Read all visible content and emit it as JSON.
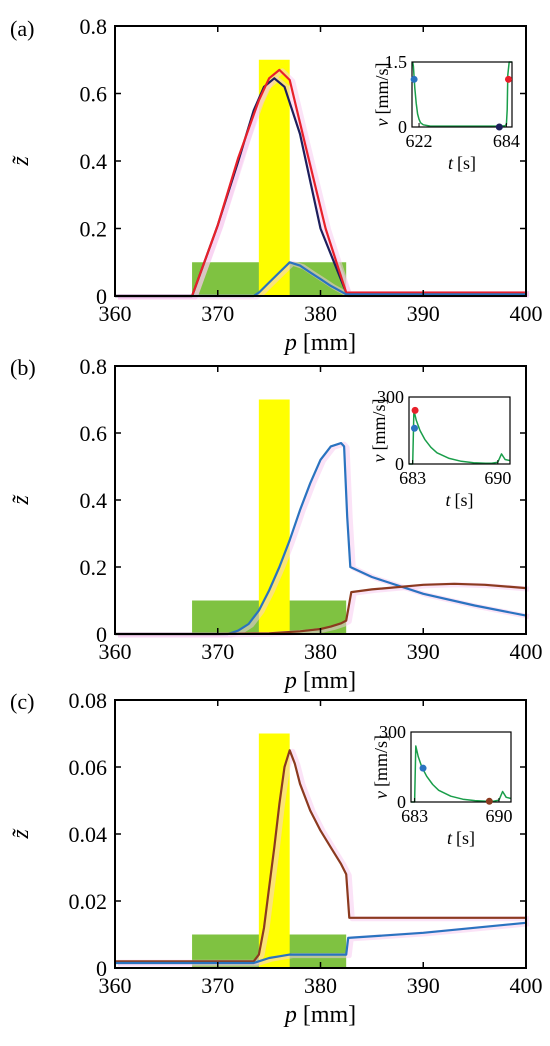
{
  "colors": {
    "yellow": "#ffff00",
    "green": "#7fc241",
    "red": "#e8202a",
    "navy": "#1d1f5c",
    "blue": "#2a73c0",
    "brown": "#8b3a1f",
    "inset_line": "#1a9e4a",
    "pink_shadow": "#f8c8f0"
  },
  "chart_data": [
    {
      "type": "line",
      "panel_label": "(a)",
      "xlabel_var": "p",
      "xlabel_unit": "[mm]",
      "ylabel": "z̃",
      "xlim": [
        360,
        400
      ],
      "ylim": [
        0,
        0.8
      ],
      "x_ticks": [
        360,
        370,
        380,
        390,
        400
      ],
      "y_ticks": [
        0,
        0.2,
        0.4,
        0.6,
        0.8
      ],
      "y_tick_labels": [
        "0",
        "0.2",
        "0.4",
        "0.6",
        "0.8"
      ],
      "shaded_regions": [
        {
          "color": "green",
          "x_from": 367.5,
          "x_to": 382.5,
          "y_from": 0,
          "y_to": 0.1
        },
        {
          "color": "yellow",
          "x_from": 374,
          "x_to": 377,
          "y_from": 0,
          "y_to": 0.7
        }
      ],
      "series": [
        {
          "color": "navy",
          "x": [
            360,
            367.5,
            370,
            372,
            373.5,
            374.5,
            375.5,
            376.5,
            378,
            380,
            382.5,
            400
          ],
          "y": [
            0,
            0,
            0.21,
            0.4,
            0.55,
            0.62,
            0.645,
            0.62,
            0.48,
            0.2,
            0.01,
            0.01
          ]
        },
        {
          "color": "red",
          "x": [
            360,
            367.5,
            370,
            372,
            374,
            375,
            376,
            377,
            378.5,
            380.5,
            382.5,
            400
          ],
          "y": [
            0,
            0,
            0.21,
            0.41,
            0.58,
            0.645,
            0.67,
            0.64,
            0.45,
            0.2,
            0.01,
            0.01
          ]
        },
        {
          "color": "blue",
          "x": [
            360,
            373.5,
            374,
            375,
            376,
            377,
            378,
            379,
            380,
            381,
            382.5,
            400
          ],
          "y": [
            0,
            0,
            0.01,
            0.04,
            0.07,
            0.1,
            0.09,
            0.07,
            0.05,
            0.03,
            0.005,
            0.005
          ]
        }
      ],
      "inset": {
        "ylabel_var": "v",
        "ylabel_unit": "[mm/s]",
        "xlabel_var": "t",
        "xlabel_unit": "[s]",
        "xlim": [
          617,
          688
        ],
        "ylim": [
          0,
          1.5
        ],
        "x_tick_labels": [
          622,
          684
        ],
        "y_tick_labels": [
          "0",
          "1.5"
        ],
        "line": {
          "x": [
            617.5,
            618,
            619,
            620,
            621,
            622,
            623,
            625,
            630,
            680,
            683,
            684,
            684.6,
            685,
            686,
            688
          ],
          "y": [
            1.5,
            1.4,
            0.9,
            0.55,
            0.3,
            0.18,
            0.1,
            0.05,
            0.02,
            0.02,
            0.03,
            0.06,
            0.4,
            1.2,
            1.5,
            1.5
          ]
        },
        "markers": [
          {
            "color": "blue",
            "x": 618.5,
            "y": 1.1
          },
          {
            "color": "navy",
            "x": 679,
            "y": 0
          },
          {
            "color": "red",
            "x": 685.5,
            "y": 1.1
          }
        ]
      }
    },
    {
      "type": "line",
      "panel_label": "(b)",
      "xlabel_var": "p",
      "xlabel_unit": "[mm]",
      "ylabel": "z̃",
      "xlim": [
        360,
        400
      ],
      "ylim": [
        0,
        0.8
      ],
      "x_ticks": [
        360,
        370,
        380,
        390,
        400
      ],
      "y_ticks": [
        0,
        0.2,
        0.4,
        0.6,
        0.8
      ],
      "y_tick_labels": [
        "0",
        "0.2",
        "0.4",
        "0.6",
        "0.8"
      ],
      "shaded_regions": [
        {
          "color": "green",
          "x_from": 367.5,
          "x_to": 382.5,
          "y_from": 0,
          "y_to": 0.1
        },
        {
          "color": "yellow",
          "x_from": 374,
          "x_to": 377,
          "y_from": 0,
          "y_to": 0.7
        }
      ],
      "series": [
        {
          "color": "blue",
          "x": [
            360,
            371,
            372,
            373,
            374,
            375,
            376,
            377,
            378,
            379,
            380,
            381,
            382,
            382.3,
            382.6,
            382.9,
            385,
            390,
            395,
            400
          ],
          "y": [
            0,
            0,
            0.01,
            0.03,
            0.07,
            0.13,
            0.2,
            0.28,
            0.37,
            0.45,
            0.52,
            0.56,
            0.57,
            0.56,
            0.35,
            0.2,
            0.17,
            0.12,
            0.085,
            0.055
          ]
        },
        {
          "color": "brown",
          "x": [
            360,
            370,
            375,
            378,
            380,
            381,
            382,
            382.5,
            383,
            385,
            390,
            393,
            396,
            400
          ],
          "y": [
            0,
            0,
            0.002,
            0.008,
            0.015,
            0.022,
            0.032,
            0.04,
            0.125,
            0.133,
            0.147,
            0.15,
            0.147,
            0.137
          ]
        }
      ],
      "inset": {
        "ylabel_var": "v",
        "ylabel_unit": "[mm/s]",
        "xlabel_var": "t",
        "xlabel_unit": "[s]",
        "xlim": [
          682.7,
          691
        ],
        "ylim": [
          0,
          300
        ],
        "x_tick_labels": [
          683,
          690
        ],
        "y_tick_labels": [
          "0",
          "300"
        ],
        "line": {
          "x": [
            682.7,
            682.85,
            683,
            683.1,
            683.3,
            683.6,
            684,
            684.5,
            685,
            686,
            687,
            688,
            689,
            689.5,
            690,
            690.3,
            690.6,
            691
          ],
          "y": [
            0,
            0,
            0,
            240,
            195,
            150,
            110,
            75,
            50,
            25,
            12,
            6,
            3,
            3,
            8,
            45,
            20,
            15
          ]
        },
        "markers": [
          {
            "color": "red",
            "x": 683.2,
            "y": 240
          },
          {
            "color": "blue",
            "x": 683.15,
            "y": 160
          }
        ]
      }
    },
    {
      "type": "line",
      "panel_label": "(c)",
      "xlabel_var": "p",
      "xlabel_unit": "[mm]",
      "ylabel": "z̃",
      "xlim": [
        360,
        400
      ],
      "ylim": [
        0,
        0.08
      ],
      "x_ticks": [
        360,
        370,
        380,
        390,
        400
      ],
      "y_ticks": [
        0,
        0.02,
        0.04,
        0.06,
        0.08
      ],
      "y_tick_labels": [
        "0",
        "0.02",
        "0.04",
        "0.06",
        "0.08"
      ],
      "shaded_regions": [
        {
          "color": "green",
          "x_from": 367.5,
          "x_to": 382.5,
          "y_from": 0,
          "y_to": 0.01
        },
        {
          "color": "yellow",
          "x_from": 374,
          "x_to": 377,
          "y_from": 0,
          "y_to": 0.07
        }
      ],
      "series": [
        {
          "color": "brown",
          "x": [
            360,
            373.5,
            374,
            374.5,
            375,
            375.5,
            376,
            376.5,
            377,
            377.5,
            378,
            379,
            380,
            381,
            382,
            382.5,
            382.8,
            390,
            400
          ],
          "y": [
            0.002,
            0.002,
            0.004,
            0.012,
            0.024,
            0.036,
            0.049,
            0.06,
            0.065,
            0.061,
            0.055,
            0.047,
            0.041,
            0.036,
            0.031,
            0.028,
            0.015,
            0.015,
            0.015
          ]
        },
        {
          "color": "blue",
          "x": [
            360,
            373.5,
            374,
            375,
            376,
            377,
            382.5,
            382.7,
            390,
            400
          ],
          "y": [
            0.0015,
            0.0015,
            0.002,
            0.003,
            0.0035,
            0.004,
            0.004,
            0.009,
            0.0105,
            0.0135
          ]
        }
      ],
      "inset": {
        "ylabel_var": "v",
        "ylabel_unit": "[mm/s]",
        "xlabel_var": "t",
        "xlabel_unit": "[s]",
        "xlim": [
          682.7,
          691
        ],
        "ylim": [
          0,
          300
        ],
        "x_tick_labels": [
          683,
          690
        ],
        "y_tick_labels": [
          "0",
          "300"
        ],
        "line": {
          "x": [
            682.7,
            682.85,
            683,
            683.1,
            683.3,
            683.6,
            684,
            684.5,
            685,
            686,
            687,
            688,
            689,
            689.5,
            690,
            690.3,
            690.6,
            691
          ],
          "y": [
            0,
            0,
            0,
            240,
            195,
            150,
            110,
            75,
            50,
            25,
            12,
            6,
            3,
            3,
            8,
            45,
            20,
            15
          ]
        },
        "markers": [
          {
            "color": "blue",
            "x": 683.7,
            "y": 145
          },
          {
            "color": "brown",
            "x": 689.2,
            "y": 3
          }
        ]
      }
    }
  ]
}
